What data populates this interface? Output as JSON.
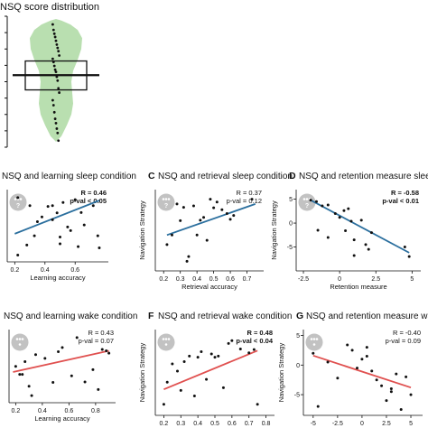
{
  "colors": {
    "violin": "#b9dfb0",
    "sleep_line": "#2b6f9e",
    "wake_line": "#e0504f",
    "points": "#111111",
    "badge": "#c2c2c2"
  },
  "icons": {
    "sleep_badge": "moon-dots-icon",
    "wake_badge": "sun-dots-icon"
  },
  "top_title": "NSQ score distribution",
  "chart_data": [
    {
      "type": "violin",
      "title": "NSQ score distribution",
      "ylim": [
        -12,
        12
      ],
      "values": [
        10.5,
        9.5,
        8.8,
        8.2,
        7.5,
        6.8,
        6.2,
        5.6,
        4.8,
        4.2,
        3.6,
        2.9,
        2.2,
        1.8,
        0.9,
        0.2,
        -1.2,
        -2.0,
        -3.4,
        -4.3,
        -5.6,
        -6.8,
        -7.6,
        -8.6,
        -9.4,
        -10.8
      ],
      "box": {
        "q1": -1.5,
        "median": 1.2,
        "q3": 3.8
      }
    },
    {
      "type": "scatter",
      "letter": "",
      "title": "NSQ and learning sleep condition",
      "xlabel": "Learning accuracy",
      "ylabel": "",
      "xlim": [
        0.15,
        0.82
      ],
      "ylim": [
        -11,
        7
      ],
      "xticks": [
        0.2,
        0.4,
        0.6
      ],
      "yticks": [],
      "stats": {
        "r": "R = 0.46",
        "p": "p-val < 0.05",
        "bold": true
      },
      "fit": {
        "x": [
          0.2,
          0.76
        ],
        "y": [
          -4.0,
          4.3
        ]
      },
      "points": [
        [
          0.22,
          5.0
        ],
        [
          0.22,
          -9.3
        ],
        [
          0.28,
          -6.8
        ],
        [
          0.33,
          -4.5
        ],
        [
          0.35,
          -1.0
        ],
        [
          0.38,
          0.2
        ],
        [
          0.42,
          2.8
        ],
        [
          0.45,
          3.0
        ],
        [
          0.45,
          -0.5
        ],
        [
          0.48,
          1.2
        ],
        [
          0.5,
          -4.8
        ],
        [
          0.5,
          -6.5
        ],
        [
          0.52,
          3.8
        ],
        [
          0.55,
          -2.3
        ],
        [
          0.57,
          -3.2
        ],
        [
          0.6,
          4.5
        ],
        [
          0.62,
          -7.2
        ],
        [
          0.64,
          1.3
        ],
        [
          0.66,
          -1.8
        ],
        [
          0.72,
          3.0
        ],
        [
          0.75,
          -4.5
        ],
        [
          0.76,
          -7.5
        ],
        [
          0.3,
          3.0
        ]
      ]
    },
    {
      "type": "scatter",
      "letter": "C",
      "title": "NSQ and retrieval sleep condition",
      "xlabel": "Retrieval accuracy",
      "ylabel": "Navigation Strategy",
      "xlim": [
        0.15,
        0.8
      ],
      "ylim": [
        -10,
        7
      ],
      "xticks": [
        0.2,
        0.3,
        0.4,
        0.5,
        0.6,
        0.7
      ],
      "yticks": [],
      "stats": {
        "r": "R = 0.37",
        "p": "p-val = 0.12",
        "bold": false
      },
      "fit": {
        "x": [
          0.22,
          0.75
        ],
        "y": [
          -2.5,
          4.0
        ]
      },
      "points": [
        [
          0.22,
          -4.5
        ],
        [
          0.25,
          -2.5
        ],
        [
          0.28,
          4.0
        ],
        [
          0.3,
          0.5
        ],
        [
          0.32,
          3.3
        ],
        [
          0.34,
          -8.0
        ],
        [
          0.35,
          -7.0
        ],
        [
          0.38,
          3.6
        ],
        [
          0.4,
          -2.5
        ],
        [
          0.42,
          0.6
        ],
        [
          0.44,
          1.2
        ],
        [
          0.46,
          -3.6
        ],
        [
          0.48,
          5.0
        ],
        [
          0.5,
          3.2
        ],
        [
          0.52,
          4.4
        ],
        [
          0.55,
          2.8
        ],
        [
          0.58,
          2.0
        ],
        [
          0.6,
          0.8
        ],
        [
          0.62,
          1.6
        ],
        [
          0.73,
          5.0
        ]
      ]
    },
    {
      "type": "scatter",
      "letter": "D",
      "title": "NSQ and retention measure sleep condition",
      "xlabel": "Retention measure",
      "ylabel": "Navigation Strategy",
      "xlim": [
        -3.0,
        5.6
      ],
      "ylim": [
        -10,
        7
      ],
      "xticks": [
        -2.5,
        0.0,
        2.5,
        5.0
      ],
      "yticks": [
        -5,
        0,
        5
      ],
      "stats": {
        "r": "R = -0.58",
        "p": "p-val < 0.01",
        "bold": true
      },
      "fit": {
        "x": [
          -2.0,
          4.8
        ],
        "y": [
          4.8,
          -6.2
        ]
      },
      "points": [
        [
          -2.0,
          4.8
        ],
        [
          -1.6,
          4.5
        ],
        [
          -1.2,
          3.6
        ],
        [
          -0.8,
          3.8
        ],
        [
          -0.8,
          -3.0
        ],
        [
          -0.3,
          2.0
        ],
        [
          0.0,
          1.2
        ],
        [
          0.3,
          2.6
        ],
        [
          0.4,
          -1.6
        ],
        [
          0.8,
          0.4
        ],
        [
          1.0,
          -3.5
        ],
        [
          1.0,
          -6.8
        ],
        [
          1.5,
          0.6
        ],
        [
          1.8,
          -4.5
        ],
        [
          2.0,
          -5.5
        ],
        [
          2.2,
          -2.0
        ],
        [
          4.5,
          -5.0
        ],
        [
          4.8,
          -7.0
        ],
        [
          -1.5,
          -1.5
        ],
        [
          0.6,
          3.0
        ]
      ]
    },
    {
      "type": "scatter",
      "letter": "",
      "title": "NSQ and learning wake condition",
      "xlabel": "Learning accuracy",
      "ylabel": "",
      "xlim": [
        0.15,
        0.95
      ],
      "ylim": [
        -8.5,
        7
      ],
      "xticks": [
        0.2,
        0.4,
        0.6,
        0.8
      ],
      "yticks": [],
      "stats": {
        "r": "R = 0.43",
        "p": "p-val = 0.07",
        "bold": false
      },
      "fit": {
        "x": [
          0.18,
          0.9
        ],
        "y": [
          -2.0,
          2.5
        ]
      },
      "points": [
        [
          0.2,
          -0.8
        ],
        [
          0.23,
          -2.5
        ],
        [
          0.27,
          0.2
        ],
        [
          0.3,
          -5.0
        ],
        [
          0.32,
          -7.0
        ],
        [
          0.35,
          1.7
        ],
        [
          0.42,
          0.9
        ],
        [
          0.48,
          -4.2
        ],
        [
          0.52,
          2.3
        ],
        [
          0.55,
          3.2
        ],
        [
          0.62,
          -2.8
        ],
        [
          0.66,
          5.3
        ],
        [
          0.72,
          -4.1
        ],
        [
          0.78,
          -1.5
        ],
        [
          0.82,
          -5.7
        ],
        [
          0.85,
          2.8
        ],
        [
          0.9,
          2.0
        ],
        [
          0.88,
          2.5
        ],
        [
          0.25,
          -2.5
        ]
      ]
    },
    {
      "type": "scatter",
      "letter": "F",
      "title": "NSQ and retrieval wake condition",
      "xlabel": "Retrieval accuracy",
      "ylabel": "Navigation Strategy",
      "xlim": [
        0.15,
        0.85
      ],
      "ylim": [
        -8.5,
        7
      ],
      "xticks": [
        0.2,
        0.3,
        0.4,
        0.5,
        0.6,
        0.7,
        0.8
      ],
      "yticks": [],
      "stats": {
        "r": "R = 0.48",
        "p": "p-val < 0.04",
        "bold": true
      },
      "fit": {
        "x": [
          0.2,
          0.75
        ],
        "y": [
          -3.8,
          3.2
        ]
      },
      "points": [
        [
          0.2,
          -6.5
        ],
        [
          0.22,
          -2.5
        ],
        [
          0.25,
          0.8
        ],
        [
          0.28,
          -0.5
        ],
        [
          0.3,
          -4.0
        ],
        [
          0.32,
          1.2
        ],
        [
          0.35,
          2.2
        ],
        [
          0.38,
          -5.0
        ],
        [
          0.4,
          2.0
        ],
        [
          0.42,
          3.0
        ],
        [
          0.45,
          -2.0
        ],
        [
          0.48,
          2.6
        ],
        [
          0.5,
          2.0
        ],
        [
          0.52,
          2.2
        ],
        [
          0.55,
          -3.5
        ],
        [
          0.58,
          4.5
        ],
        [
          0.6,
          5.0
        ],
        [
          0.65,
          3.5
        ],
        [
          0.7,
          2.8
        ],
        [
          0.73,
          3.4
        ],
        [
          0.75,
          -6.5
        ]
      ]
    },
    {
      "type": "scatter",
      "letter": "G",
      "title": "NSQ and retention measure wake condition",
      "xlabel": "Retention measure",
      "ylabel": "Navigation Strategy",
      "xlim": [
        -6.0,
        6.2
      ],
      "ylim": [
        -8.5,
        6
      ],
      "xticks": [
        -5,
        -2.5,
        0.0,
        2.5,
        5.0
      ],
      "yticks": [
        -5,
        0,
        5
      ],
      "stats": {
        "r": "R = -0.40",
        "p": "p-val = 0.09",
        "bold": false
      },
      "fit": {
        "x": [
          -5.0,
          5.0
        ],
        "y": [
          1.6,
          -3.8
        ]
      },
      "points": [
        [
          -5.0,
          2.0
        ],
        [
          -4.5,
          -7.0
        ],
        [
          -3.5,
          0.5
        ],
        [
          -2.5,
          -2.2
        ],
        [
          -1.5,
          3.4
        ],
        [
          -1.0,
          2.5
        ],
        [
          -0.5,
          -0.5
        ],
        [
          0.0,
          1.0
        ],
        [
          0.5,
          3.0
        ],
        [
          1.0,
          -1.0
        ],
        [
          1.5,
          -2.5
        ],
        [
          2.0,
          -3.5
        ],
        [
          2.5,
          -6.0
        ],
        [
          3.0,
          -4.5
        ],
        [
          3.5,
          -1.5
        ],
        [
          4.0,
          -7.5
        ],
        [
          4.5,
          -2.0
        ],
        [
          5.0,
          -5.0
        ],
        [
          0.5,
          1.5
        ],
        [
          3.0,
          -4.0
        ]
      ]
    }
  ]
}
